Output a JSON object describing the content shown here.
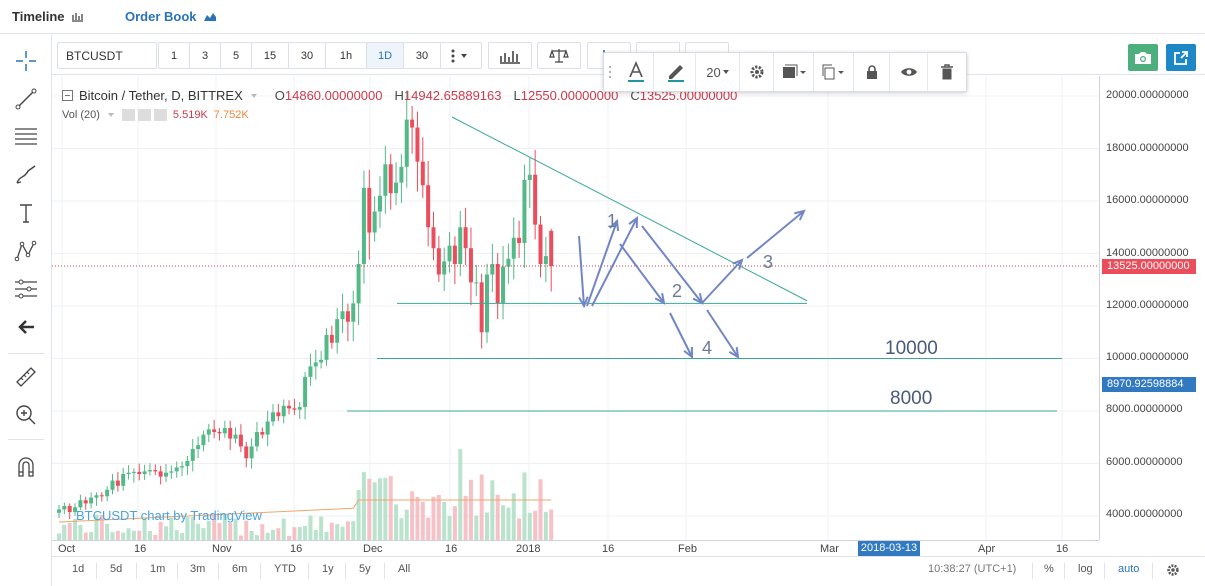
{
  "tabs": {
    "timeline": "Timeline",
    "order_book": "Order Book"
  },
  "toolbar": {
    "symbol": "BTCUSDT",
    "intervals": [
      "1",
      "3",
      "5",
      "15",
      "30",
      "1h",
      "1D",
      "30"
    ],
    "active_interval": "1D"
  },
  "float_toolbar": {
    "line_width": "20"
  },
  "legend": {
    "title": "Bitcoin / Tether, D, BITTREX",
    "o_label": "O",
    "o_value": "14860.00000000",
    "h_label": "H",
    "h_value": "14942.65889163",
    "l_label": "L",
    "l_value": "12550.00000000",
    "c_label": "C",
    "c_value": "13525.00000000",
    "vol_label": "Vol (20)",
    "vol_value1": "5.519K",
    "vol_value2": "7.752K"
  },
  "watermark": "BTCUSDT chart by TradingView",
  "annotations": {
    "n1": "1",
    "n2": "2",
    "n3": "3",
    "n4": "4",
    "level_10000": "10000",
    "level_8000": "8000"
  },
  "price_axis": {
    "ticks": [
      "20000.00000000",
      "18000.00000000",
      "16000.00000000",
      "14000.00000000",
      "12000.00000000",
      "10000.00000000",
      "8000.00000000",
      "6000.00000000",
      "4000.00000000"
    ],
    "last_price": "13525.00000000",
    "cursor_price": "8970.92598884"
  },
  "time_axis": {
    "ticks": [
      "Oct",
      "16",
      "Nov",
      "16",
      "Dec",
      "16",
      "2018",
      "16",
      "Feb",
      "Mar",
      "Apr",
      "16"
    ],
    "cursor_date": "2018-03-13"
  },
  "ranges": [
    "1d",
    "5d",
    "1m",
    "3m",
    "6m",
    "YTD",
    "1y",
    "5y",
    "All"
  ],
  "status": {
    "clock": "10:38:27 (UTC+1)",
    "percent": "%",
    "log": "log",
    "auto": "auto"
  },
  "colors": {
    "up": "#53b987",
    "down": "#eb4d5c",
    "accent": "#2a73b8",
    "trend": "#3aa897",
    "arrows": "#7286c6",
    "camera_btn": "#4caf7d",
    "share_btn": "#1e88c7"
  },
  "chart_data": {
    "type": "candlestick",
    "title": "Bitcoin / Tether, D, BITTREX",
    "ylim": [
      3500,
      20500
    ],
    "last_candle": {
      "open": 14860.0,
      "high": 14942.65889163,
      "low": 12550.0,
      "close": 13525.0
    },
    "closes": [
      4250,
      4380,
      4150,
      4330,
      4600,
      4480,
      4700,
      4790,
      4750,
      5000,
      5350,
      5150,
      5600,
      5650,
      5680,
      5600,
      5700,
      5750,
      5700,
      5500,
      5650,
      5700,
      5850,
      5900,
      6100,
      6550,
      6700,
      7100,
      7300,
      7200,
      7150,
      7350,
      6950,
      7100,
      6650,
      6200,
      6650,
      7200,
      7100,
      7600,
      7950,
      7800,
      8200,
      8100,
      8050,
      8150,
      9300,
      9700,
      9850,
      9950,
      10900,
      10600,
      11500,
      11800,
      11400,
      12100,
      13600,
      16500,
      14800,
      15600,
      16200,
      17400,
      16300,
      16700,
      17300,
      19100,
      18800,
      17500,
      16600,
      15000,
      14200,
      13200,
      13700,
      14300,
      13600,
      15000,
      14200,
      12900,
      12900,
      11000,
      13200,
      13600,
      12100,
      13500,
      13800,
      14600,
      14400,
      16800,
      17000,
      15100,
      13600,
      13900,
      13525
    ],
    "series": [
      {
        "name": "BTCUSDT",
        "kind": "candles"
      },
      {
        "name": "Vol (20)",
        "kind": "volume"
      }
    ],
    "horizontal_levels": [
      {
        "label": "10000",
        "price": 10000
      },
      {
        "label": "8000",
        "price": 8000
      },
      {
        "label": "",
        "price": 12100
      }
    ],
    "trendline": {
      "from_price": 19200,
      "to_price": 12200
    }
  }
}
